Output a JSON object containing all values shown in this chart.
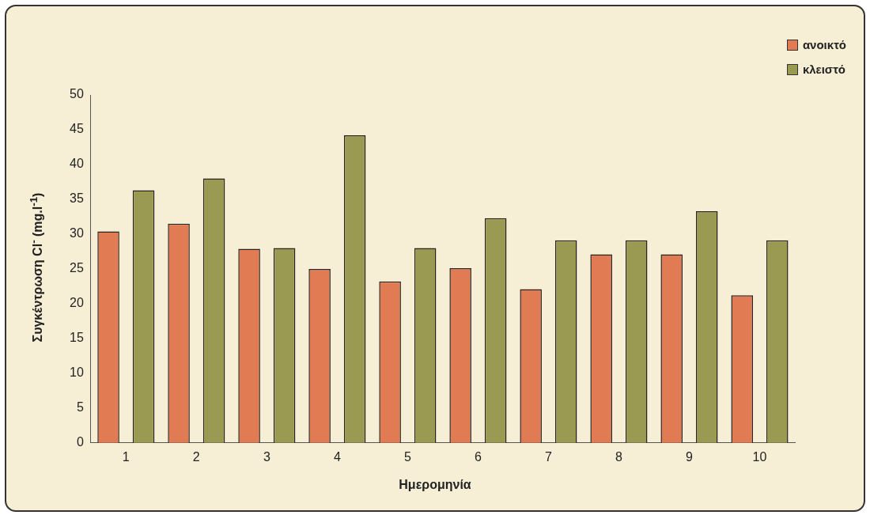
{
  "chart_data": {
    "type": "bar",
    "xlabel": "Ημερομηνία",
    "ylabel": "Συγκέντρωση Cl$^{-}$ (mg.l$^{-1}$)",
    "categories": [
      "1",
      "2",
      "3",
      "4",
      "5",
      "6",
      "7",
      "8",
      "9",
      "10"
    ],
    "series": [
      {
        "name": "ανοικτό",
        "color": "#e07b54",
        "values": [
          30.4,
          31.5,
          27.9,
          25.0,
          23.2,
          25.1,
          22.1,
          27.1,
          27.1,
          21.2
        ]
      },
      {
        "name": "κλειστό",
        "color": "#9a9a52",
        "values": [
          36.3,
          38.0,
          28.0,
          44.2,
          28.0,
          32.3,
          29.1,
          29.1,
          33.3,
          29.1
        ]
      }
    ],
    "ylim": [
      0,
      50
    ],
    "yticks": [
      0,
      5,
      10,
      15,
      20,
      25,
      30,
      35,
      40,
      45,
      50
    ],
    "grid": false,
    "legend": "top right"
  }
}
